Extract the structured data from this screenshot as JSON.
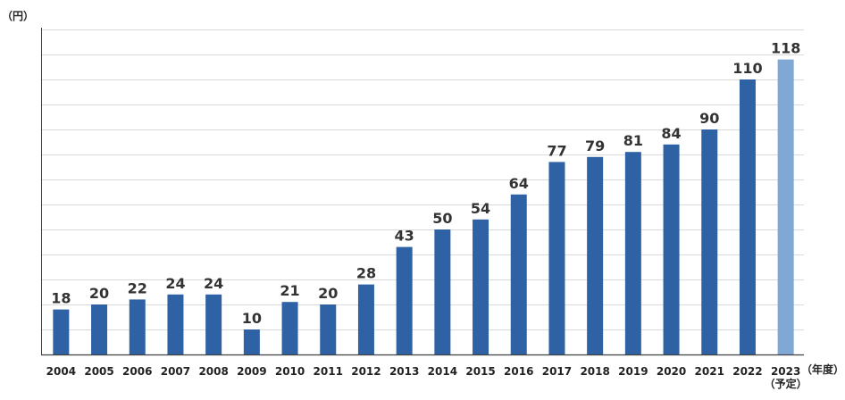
{
  "chart_data": {
    "type": "bar",
    "categories": [
      "2004",
      "2005",
      "2006",
      "2007",
      "2008",
      "2009",
      "2010",
      "2011",
      "2012",
      "2013",
      "2014",
      "2015",
      "2016",
      "2017",
      "2018",
      "2019",
      "2020",
      "2021",
      "2022",
      "2023"
    ],
    "category_notes": {
      "2023": "（予定）"
    },
    "values": [
      18,
      20,
      22,
      24,
      24,
      10,
      21,
      20,
      28,
      43,
      50,
      54,
      64,
      77,
      79,
      81,
      84,
      90,
      110,
      118
    ],
    "ylabel": "（円）",
    "xlabel": "（年度）",
    "ylim": [
      0,
      130
    ],
    "grid": true,
    "colors": {
      "bar": "#2e62a4",
      "bar_forecast": "#80a8d4",
      "grid": "#d9d9d9",
      "axis": "#404040"
    }
  }
}
